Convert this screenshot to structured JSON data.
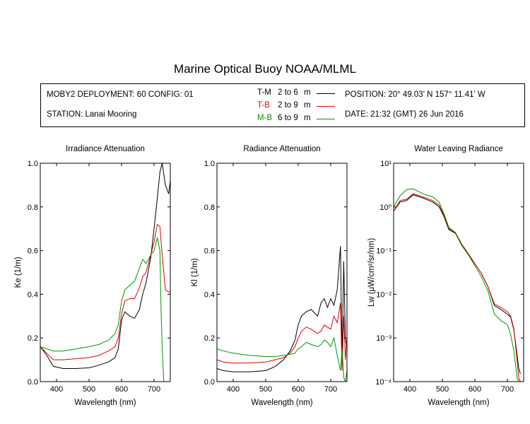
{
  "title": "Marine Optical Buoy NOAA/MLML",
  "info": {
    "deployment": "MOBY2 DEPLOYMENT: 60 CONFIG: 01",
    "station": "STATION: Lanai Mooring",
    "position": "POSITION: 20° 49.03' N   157° 11.41' W",
    "date": "DATE: 21:32 (GMT) 26 Jun 2016"
  },
  "legend": [
    {
      "code": "T-M",
      "range": "2 to 6",
      "unit": "m",
      "color": "#000000"
    },
    {
      "code": "T-B",
      "range": "2 to 9",
      "unit": "m",
      "color": "#e00000"
    },
    {
      "code": "M-B",
      "range": "6 to 9",
      "unit": "m",
      "color": "#009900"
    }
  ],
  "chart_data": [
    {
      "type": "line",
      "title": "Irradiance Attenuation",
      "xlabel": "Wavelength (nm)",
      "ylabel": "Ke  (1/m)",
      "xlim": [
        350,
        750
      ],
      "ylim": [
        0,
        1.0
      ],
      "xticks": [
        400,
        500,
        600,
        700
      ],
      "yticks": [
        0.0,
        0.2,
        0.4,
        0.6,
        0.8,
        1.0
      ],
      "ytick_labels": [
        "0.0",
        "0.2",
        "0.4",
        "0.6",
        "0.8",
        "1.0"
      ],
      "series": [
        {
          "name": "T-M",
          "color": "#000000",
          "x": [
            350,
            370,
            390,
            420,
            460,
            500,
            530,
            560,
            580,
            590,
            600,
            610,
            625,
            640,
            655,
            665,
            675,
            690,
            700,
            710,
            718,
            725,
            735,
            745,
            750
          ],
          "y": [
            0.16,
            0.12,
            0.07,
            0.06,
            0.06,
            0.063,
            0.075,
            0.09,
            0.11,
            0.15,
            0.28,
            0.32,
            0.3,
            0.29,
            0.33,
            0.4,
            0.45,
            0.57,
            0.7,
            0.84,
            0.96,
            1.0,
            0.9,
            0.86,
            0.92
          ]
        },
        {
          "name": "T-B",
          "color": "#e00000",
          "x": [
            350,
            370,
            390,
            420,
            460,
            500,
            530,
            560,
            580,
            590,
            600,
            610,
            625,
            640,
            655,
            665,
            675,
            690,
            700,
            710,
            718,
            725,
            735,
            745,
            750
          ],
          "y": [
            0.16,
            0.13,
            0.1,
            0.1,
            0.105,
            0.11,
            0.12,
            0.14,
            0.16,
            0.2,
            0.31,
            0.37,
            0.38,
            0.38,
            0.43,
            0.48,
            0.5,
            0.58,
            0.64,
            0.72,
            0.71,
            0.58,
            0.42,
            0.41,
            0.41
          ]
        },
        {
          "name": "M-B",
          "color": "#009900",
          "x": [
            350,
            370,
            390,
            420,
            460,
            500,
            530,
            560,
            580,
            590,
            600,
            610,
            625,
            640,
            655,
            665,
            675,
            690,
            700,
            710,
            718,
            722,
            726,
            730
          ],
          "y": [
            0.16,
            0.15,
            0.14,
            0.14,
            0.15,
            0.16,
            0.17,
            0.19,
            0.22,
            0.26,
            0.37,
            0.42,
            0.44,
            0.46,
            0.52,
            0.56,
            0.54,
            0.58,
            0.6,
            0.66,
            0.6,
            0.3,
            0.12,
            0.0
          ]
        }
      ]
    },
    {
      "type": "line",
      "title": "Radiance Attenuation",
      "xlabel": "Wavelength (nm)",
      "ylabel": "Kl  (1/m)",
      "xlim": [
        350,
        750
      ],
      "ylim": [
        0,
        1.0
      ],
      "xticks": [
        400,
        500,
        600,
        700
      ],
      "yticks": [
        0.0,
        0.2,
        0.4,
        0.6,
        0.8,
        1.0
      ],
      "ytick_labels": [
        "0.0",
        "0.2",
        "0.4",
        "0.6",
        "0.8",
        "1.0"
      ],
      "series": [
        {
          "name": "T-M",
          "color": "#000000",
          "x": [
            350,
            370,
            400,
            450,
            500,
            530,
            555,
            575,
            590,
            600,
            610,
            625,
            640,
            660,
            670,
            680,
            690,
            700,
            710,
            720,
            730,
            735,
            740,
            745,
            750
          ],
          "y": [
            0.06,
            0.05,
            0.045,
            0.045,
            0.05,
            0.07,
            0.1,
            0.14,
            0.19,
            0.26,
            0.3,
            0.32,
            0.33,
            0.3,
            0.36,
            0.38,
            0.34,
            0.38,
            0.35,
            0.42,
            0.62,
            0.1,
            0.55,
            0.2,
            0.15
          ]
        },
        {
          "name": "T-B",
          "color": "#e00000",
          "x": [
            350,
            370,
            400,
            450,
            500,
            530,
            555,
            575,
            590,
            600,
            610,
            625,
            640,
            660,
            670,
            680,
            690,
            700,
            710,
            720,
            730,
            735,
            740,
            745,
            750
          ],
          "y": [
            0.1,
            0.09,
            0.085,
            0.085,
            0.09,
            0.1,
            0.11,
            0.13,
            0.16,
            0.2,
            0.23,
            0.25,
            0.24,
            0.22,
            0.23,
            0.26,
            0.25,
            0.24,
            0.3,
            0.27,
            0.36,
            0.05,
            0.3,
            0.1,
            0.2
          ]
        },
        {
          "name": "M-B",
          "color": "#009900",
          "x": [
            350,
            370,
            400,
            450,
            500,
            530,
            555,
            575,
            590,
            600,
            610,
            625,
            640,
            660,
            670,
            680,
            690,
            700,
            710,
            720,
            730,
            735,
            740,
            745,
            750
          ],
          "y": [
            0.15,
            0.14,
            0.13,
            0.12,
            0.115,
            0.115,
            0.12,
            0.125,
            0.13,
            0.15,
            0.16,
            0.18,
            0.17,
            0.16,
            0.17,
            0.19,
            0.18,
            0.16,
            0.2,
            0.12,
            0.05,
            0.15,
            0.02,
            0.0,
            0.05
          ]
        }
      ]
    },
    {
      "type": "line",
      "title": "Water Leaving Radiance",
      "xlabel": "Wavelength (nm)",
      "ylabel": "Lw  (μW/cm²/sr/nm)",
      "xlim": [
        350,
        750
      ],
      "ylim": [
        0.0001,
        10
      ],
      "yscale": "log",
      "xticks": [
        400,
        500,
        600,
        700
      ],
      "yticks": [
        10,
        1,
        0.1,
        0.01,
        0.001,
        0.0001
      ],
      "ytick_labels": [
        "10¹",
        "10⁰",
        "10⁻¹",
        "10⁻²",
        "10⁻³",
        "10⁻⁴"
      ],
      "series": [
        {
          "name": "T-M",
          "color": "#000000",
          "x": [
            350,
            370,
            390,
            410,
            440,
            470,
            490,
            505,
            520,
            540,
            560,
            580,
            600,
            620,
            640,
            660,
            680,
            700,
            710,
            720,
            725,
            730,
            735,
            740
          ],
          "y": [
            0.8,
            1.3,
            1.4,
            1.9,
            1.6,
            1.3,
            1.0,
            0.6,
            0.3,
            0.25,
            0.13,
            0.08,
            0.05,
            0.03,
            0.015,
            0.0055,
            0.0045,
            0.0035,
            0.003,
            0.0015,
            0.0008,
            0.0004,
            0.0002,
            0.00015
          ]
        },
        {
          "name": "T-B",
          "color": "#e00000",
          "x": [
            350,
            370,
            390,
            410,
            440,
            470,
            490,
            505,
            520,
            540,
            560,
            580,
            600,
            620,
            640,
            660,
            680,
            700,
            710,
            720,
            725,
            730,
            735,
            740
          ],
          "y": [
            0.8,
            1.4,
            1.5,
            2.0,
            1.7,
            1.4,
            1.1,
            0.65,
            0.32,
            0.26,
            0.14,
            0.085,
            0.05,
            0.03,
            0.015,
            0.006,
            0.005,
            0.004,
            0.0032,
            0.0016,
            0.0007,
            0.0003,
            0.00012,
            0.0001
          ]
        },
        {
          "name": "M-B",
          "color": "#009900",
          "x": [
            350,
            370,
            390,
            410,
            440,
            470,
            490,
            505,
            520,
            540,
            560,
            580,
            600,
            620,
            640,
            660,
            680,
            700,
            710,
            720,
            725,
            730,
            735
          ],
          "y": [
            1.0,
            1.8,
            2.5,
            2.6,
            2.0,
            1.7,
            1.3,
            0.7,
            0.34,
            0.26,
            0.13,
            0.08,
            0.045,
            0.025,
            0.012,
            0.0035,
            0.0025,
            0.002,
            0.0012,
            0.0005,
            0.00025,
            0.00012,
            0.0001
          ]
        }
      ]
    }
  ]
}
